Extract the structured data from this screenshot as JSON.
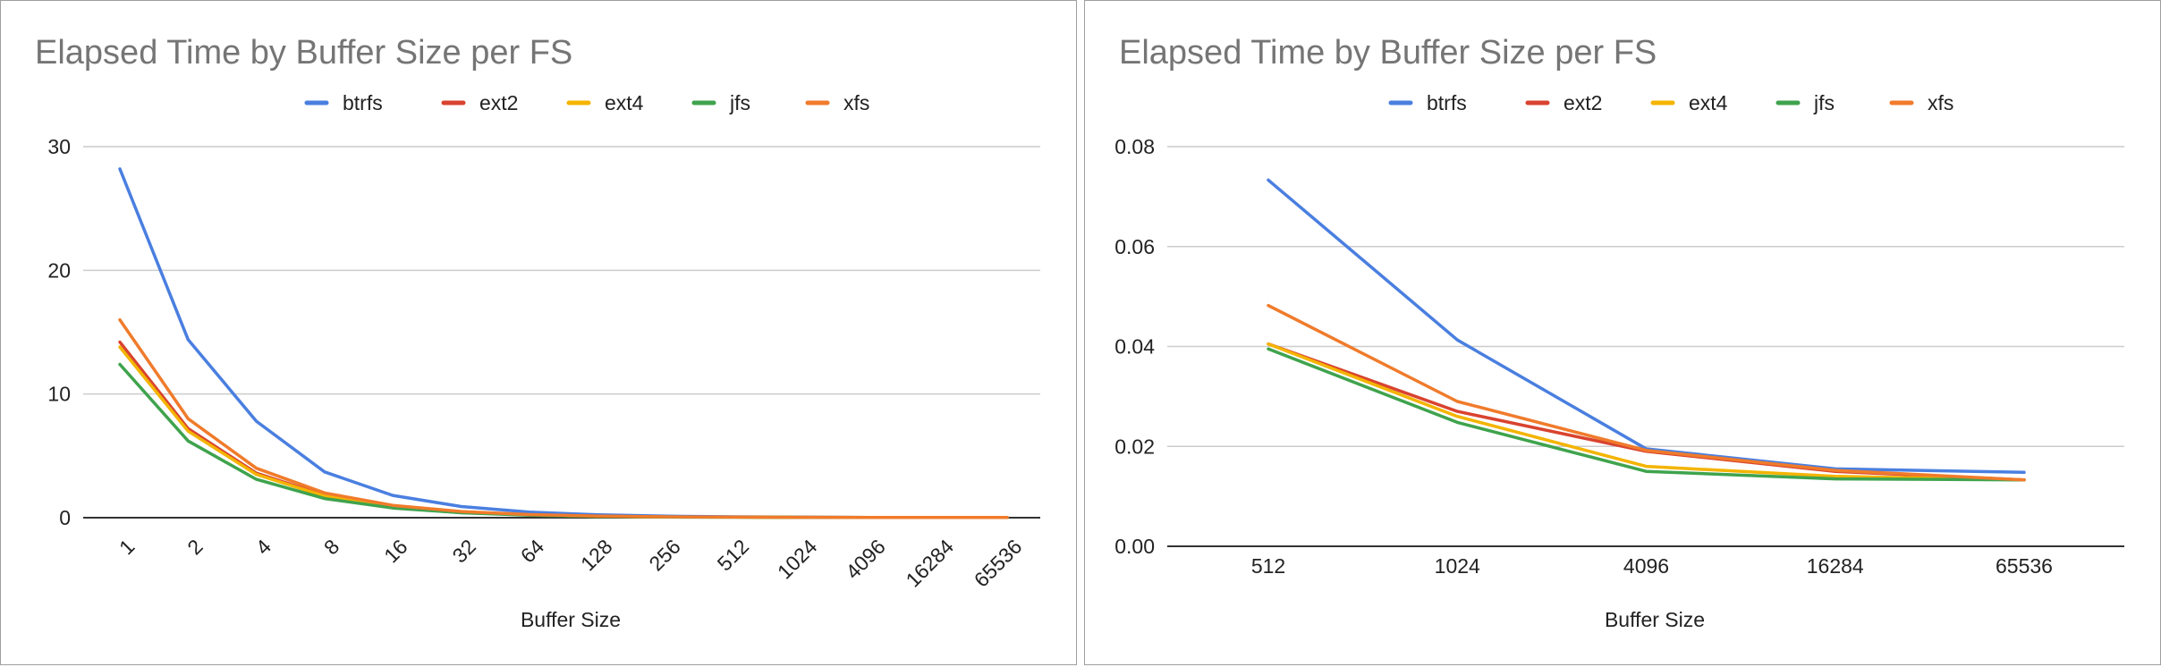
{
  "chart_data": [
    {
      "type": "line",
      "title": "Elapsed Time by Buffer Size per FS",
      "xlabel": "Buffer Size",
      "ylabel": "",
      "ylim": [
        0,
        30
      ],
      "yticks": [
        "0",
        "10",
        "20",
        "30"
      ],
      "categories": [
        "1",
        "2",
        "4",
        "8",
        "16",
        "32",
        "64",
        "128",
        "256",
        "512",
        "1024",
        "4096",
        "16284",
        "65536"
      ],
      "legend_position": "top",
      "grid": true,
      "series": [
        {
          "name": "btrfs",
          "color": "#4a7fe0",
          "values": [
            28.2,
            14.4,
            7.8,
            3.7,
            1.8,
            0.9,
            0.45,
            0.23,
            0.12,
            0.07,
            0.04,
            0.02,
            0.015,
            0.015
          ]
        },
        {
          "name": "ext2",
          "color": "#d9432f",
          "values": [
            14.2,
            7.2,
            3.6,
            1.8,
            0.9,
            0.45,
            0.23,
            0.12,
            0.06,
            0.04,
            0.027,
            0.019,
            0.015,
            0.013
          ]
        },
        {
          "name": "ext4",
          "color": "#f4b400",
          "values": [
            13.8,
            7.0,
            3.5,
            1.75,
            0.88,
            0.44,
            0.22,
            0.11,
            0.06,
            0.04,
            0.026,
            0.016,
            0.014,
            0.013
          ]
        },
        {
          "name": "jfs",
          "color": "#3fa34d",
          "values": [
            12.4,
            6.2,
            3.1,
            1.55,
            0.78,
            0.4,
            0.2,
            0.1,
            0.05,
            0.04,
            0.025,
            0.015,
            0.013,
            0.013
          ]
        },
        {
          "name": "xfs",
          "color": "#f07b2b",
          "values": [
            16.0,
            8.0,
            4.0,
            2.0,
            1.0,
            0.5,
            0.25,
            0.13,
            0.07,
            0.048,
            0.029,
            0.019,
            0.015,
            0.013
          ]
        }
      ]
    },
    {
      "type": "line",
      "title": "Elapsed Time by Buffer Size per FS",
      "xlabel": "Buffer Size",
      "ylabel": "",
      "ylim": [
        0,
        0.08
      ],
      "yticks": [
        "0.00",
        "0.02",
        "0.04",
        "0.06",
        "0.08"
      ],
      "categories": [
        "512",
        "1024",
        "4096",
        "16284",
        "65536"
      ],
      "legend_position": "top",
      "grid": true,
      "series": [
        {
          "name": "btrfs",
          "color": "#4a7fe0",
          "values": [
            0.0733,
            0.0413,
            0.0195,
            0.0155,
            0.0148
          ]
        },
        {
          "name": "ext2",
          "color": "#d9432f",
          "values": [
            0.0405,
            0.027,
            0.019,
            0.015,
            0.0133
          ]
        },
        {
          "name": "ext4",
          "color": "#f4b400",
          "values": [
            0.0405,
            0.026,
            0.016,
            0.014,
            0.0133
          ]
        },
        {
          "name": "jfs",
          "color": "#3fa34d",
          "values": [
            0.0395,
            0.0248,
            0.015,
            0.0135,
            0.0133
          ]
        },
        {
          "name": "xfs",
          "color": "#f07b2b",
          "values": [
            0.0482,
            0.029,
            0.0192,
            0.0152,
            0.0133
          ]
        }
      ]
    }
  ]
}
